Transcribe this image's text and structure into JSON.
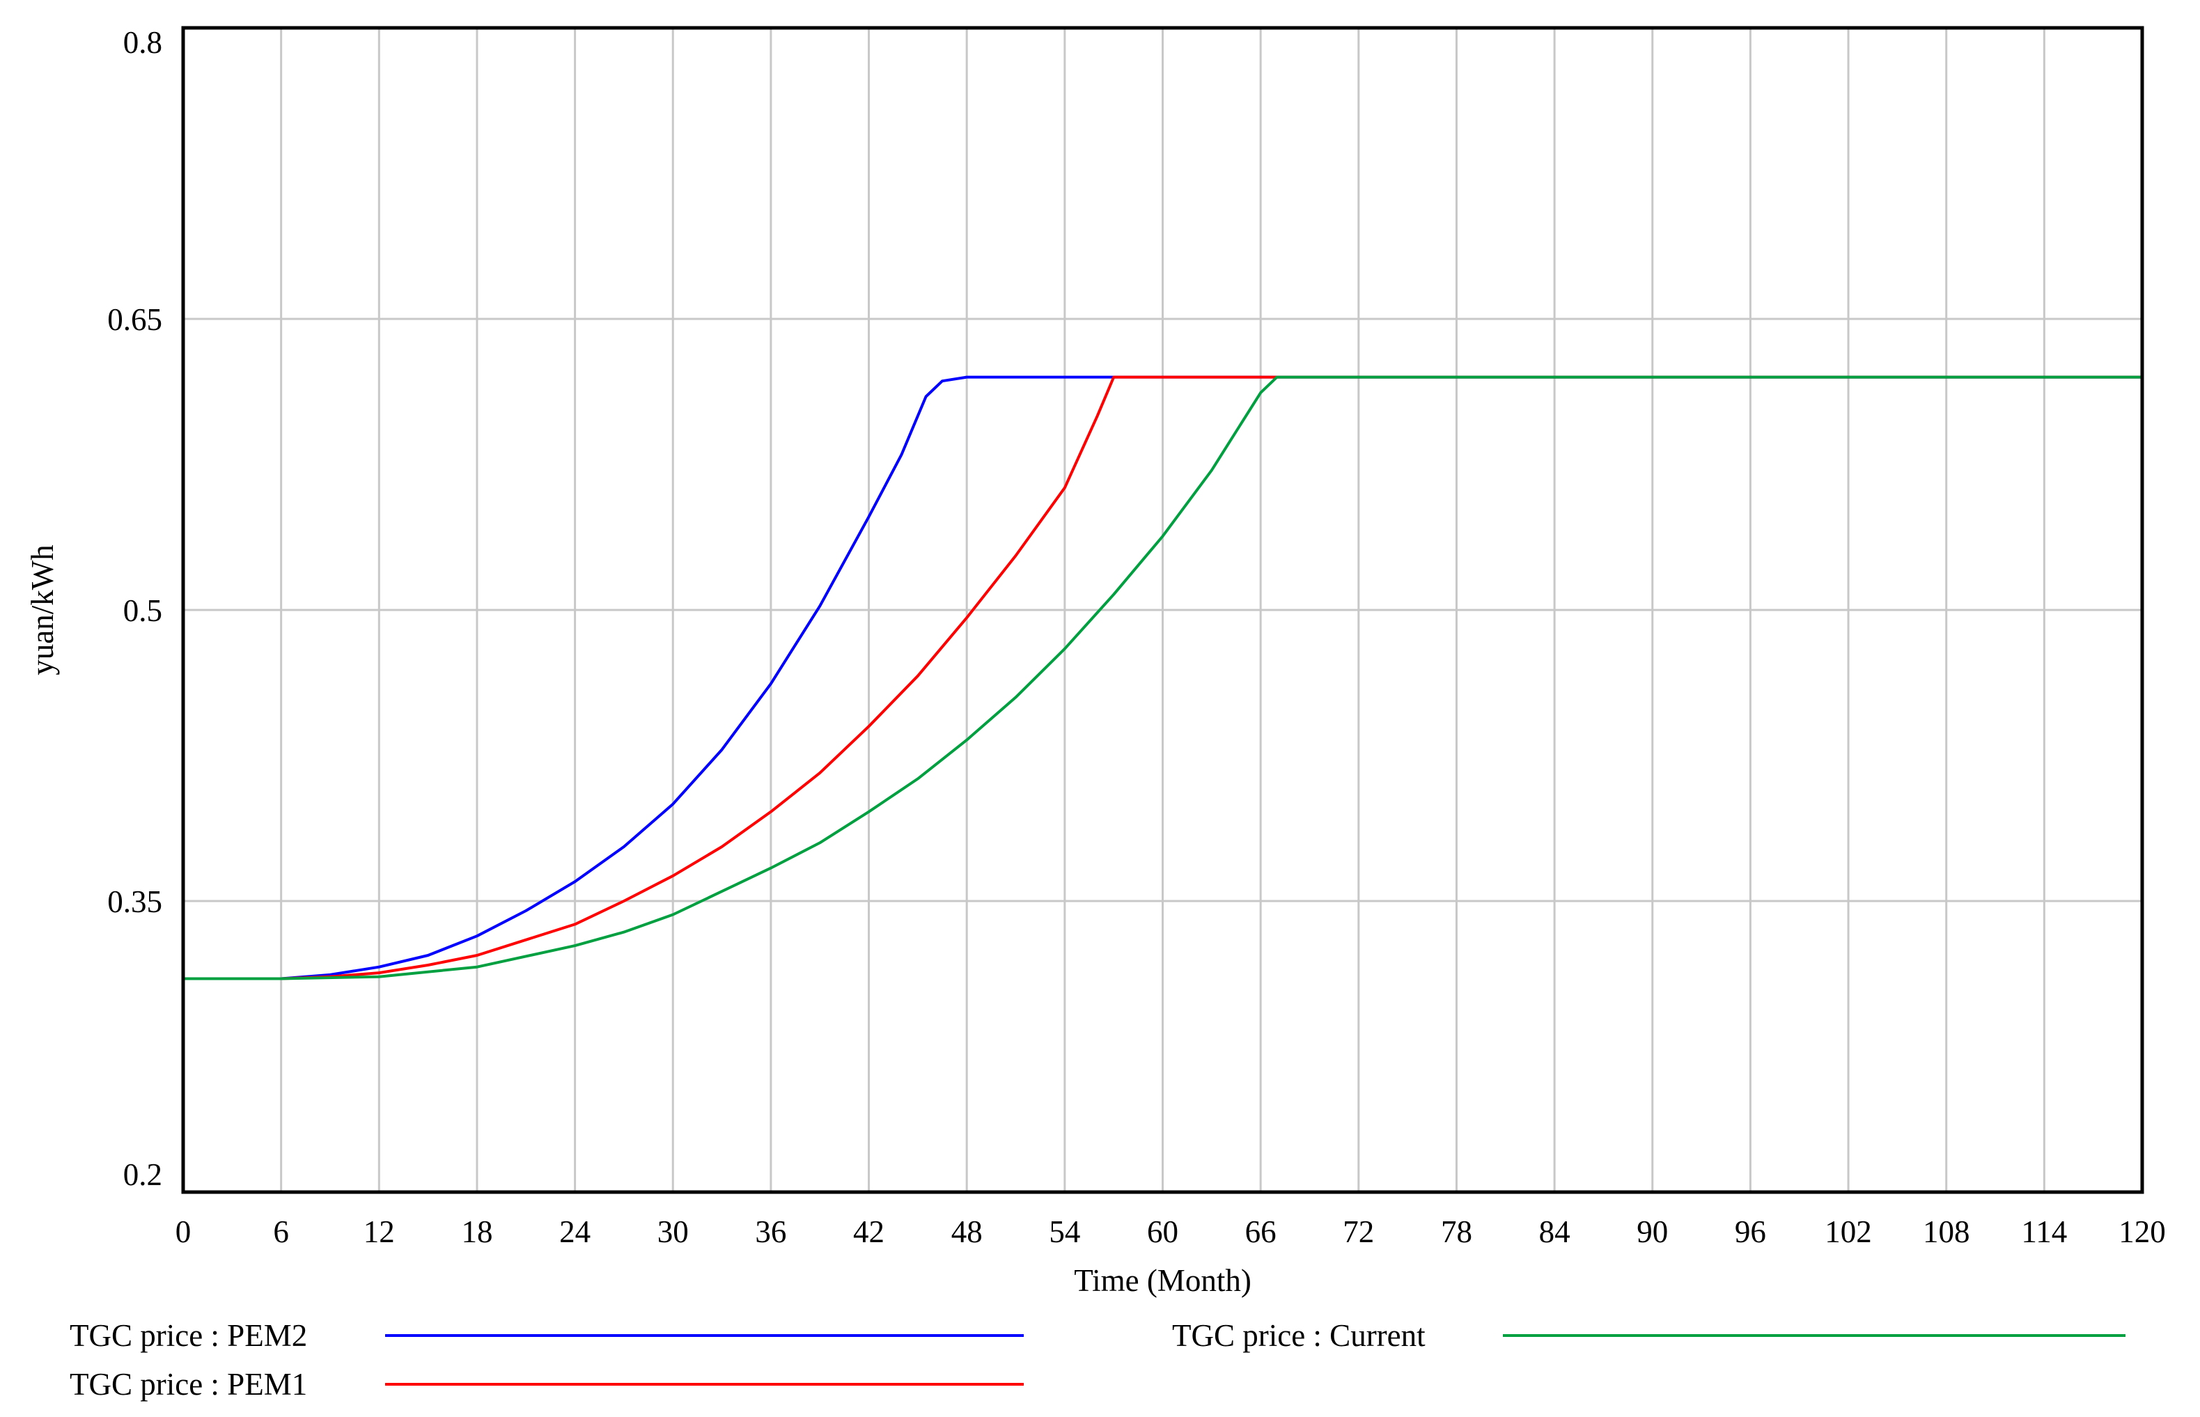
{
  "chart_data": {
    "type": "line",
    "title": "",
    "xlabel": "Time (Month)",
    "ylabel": "yuan/kWh",
    "xlim": [
      0,
      120
    ],
    "ylim": [
      0.2,
      0.8
    ],
    "x_ticks": [
      0,
      6,
      12,
      18,
      24,
      30,
      36,
      42,
      48,
      54,
      60,
      66,
      72,
      78,
      84,
      90,
      96,
      102,
      108,
      114,
      120
    ],
    "y_ticks": [
      0.2,
      0.35,
      0.5,
      0.65,
      0.8
    ],
    "x_tick_labels": [
      "0",
      "6",
      "12",
      "18",
      "24",
      "30",
      "36",
      "42",
      "48",
      "54",
      "60",
      "66",
      "72",
      "78",
      "84",
      "90",
      "96",
      "102",
      "108",
      "114",
      "120"
    ],
    "y_tick_labels": [
      "0.2",
      "0.35",
      "0.5",
      "0.65",
      "0.8"
    ],
    "grid": true,
    "legend_position": "bottom",
    "series": [
      {
        "name": "TGC price : PEM2",
        "color": "#0000ff",
        "points": [
          [
            0,
            0.31
          ],
          [
            6,
            0.31
          ],
          [
            9,
            0.312
          ],
          [
            12,
            0.316
          ],
          [
            15,
            0.322
          ],
          [
            18,
            0.332
          ],
          [
            21,
            0.345
          ],
          [
            24,
            0.36
          ],
          [
            27,
            0.378
          ],
          [
            30,
            0.4
          ],
          [
            33,
            0.428
          ],
          [
            36,
            0.462
          ],
          [
            39,
            0.502
          ],
          [
            42,
            0.548
          ],
          [
            44,
            0.58
          ],
          [
            45.5,
            0.61
          ],
          [
            46.5,
            0.618
          ],
          [
            48,
            0.62
          ],
          [
            120,
            0.62
          ]
        ]
      },
      {
        "name": "TGC price : PEM1",
        "color": "#ff0000",
        "points": [
          [
            0,
            0.31
          ],
          [
            6,
            0.31
          ],
          [
            9,
            0.311
          ],
          [
            12,
            0.313
          ],
          [
            15,
            0.317
          ],
          [
            18,
            0.322
          ],
          [
            21,
            0.33
          ],
          [
            24,
            0.338
          ],
          [
            27,
            0.35
          ],
          [
            30,
            0.363
          ],
          [
            33,
            0.378
          ],
          [
            36,
            0.396
          ],
          [
            39,
            0.416
          ],
          [
            42,
            0.44
          ],
          [
            45,
            0.466
          ],
          [
            48,
            0.496
          ],
          [
            51,
            0.528
          ],
          [
            54,
            0.563
          ],
          [
            56,
            0.6
          ],
          [
            57,
            0.62
          ],
          [
            120,
            0.62
          ]
        ]
      },
      {
        "name": "TGC price : Current",
        "color": "#00a040",
        "points": [
          [
            0,
            0.31
          ],
          [
            6,
            0.31
          ],
          [
            12,
            0.311
          ],
          [
            18,
            0.316
          ],
          [
            24,
            0.327
          ],
          [
            27,
            0.334
          ],
          [
            30,
            0.343
          ],
          [
            33,
            0.355
          ],
          [
            36,
            0.367
          ],
          [
            39,
            0.38
          ],
          [
            42,
            0.396
          ],
          [
            45,
            0.413
          ],
          [
            48,
            0.433
          ],
          [
            51,
            0.455
          ],
          [
            54,
            0.48
          ],
          [
            57,
            0.508
          ],
          [
            60,
            0.538
          ],
          [
            63,
            0.572
          ],
          [
            66,
            0.612
          ],
          [
            67,
            0.62
          ],
          [
            120,
            0.62
          ]
        ]
      }
    ]
  }
}
